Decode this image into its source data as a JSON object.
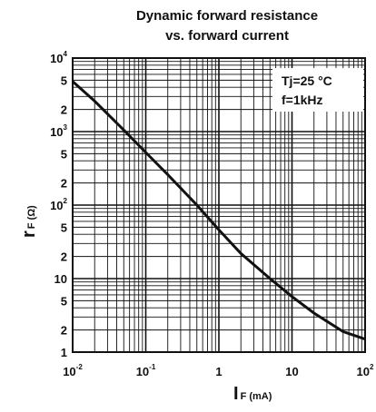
{
  "chart_data": {
    "type": "line",
    "title_line1": "Dynamic forward resistance",
    "title_line2": "vs. forward current",
    "xlabel_symbol": "I",
    "xlabel_sub": "F (mA)",
    "ylabel_symbol": "r",
    "ylabel_sub": "F (Ω)",
    "xscale": "log",
    "yscale": "log",
    "xlim": [
      0.01,
      100
    ],
    "ylim": [
      1,
      10000
    ],
    "grid": true,
    "x_ticks": [
      {
        "v": 0.01,
        "base": "10",
        "exp": "-2"
      },
      {
        "v": 0.1,
        "base": "10",
        "exp": "-1"
      },
      {
        "v": 1,
        "base": "1",
        "exp": ""
      },
      {
        "v": 10,
        "base": "10",
        "exp": ""
      },
      {
        "v": 100,
        "base": "10",
        "exp": "2"
      }
    ],
    "y_ticks": [
      {
        "v": 10000,
        "base": "10",
        "exp": "4"
      },
      {
        "v": 5000,
        "base": "5",
        "exp": ""
      },
      {
        "v": 2000,
        "base": "2",
        "exp": ""
      },
      {
        "v": 1000,
        "base": "10",
        "exp": "3"
      },
      {
        "v": 500,
        "base": "5",
        "exp": ""
      },
      {
        "v": 200,
        "base": "2",
        "exp": ""
      },
      {
        "v": 100,
        "base": "10",
        "exp": "2"
      },
      {
        "v": 50,
        "base": "5",
        "exp": ""
      },
      {
        "v": 20,
        "base": "2",
        "exp": ""
      },
      {
        "v": 10,
        "base": "10",
        "exp": ""
      },
      {
        "v": 5,
        "base": "5",
        "exp": ""
      },
      {
        "v": 2,
        "base": "2",
        "exp": ""
      },
      {
        "v": 1,
        "base": "1",
        "exp": ""
      }
    ],
    "annotations": [
      "Tj=25 °C",
      "f=1kHz"
    ],
    "series": [
      {
        "x": [
          0.01,
          0.02,
          0.05,
          0.1,
          0.2,
          0.5,
          1,
          2,
          5,
          10,
          20,
          50,
          100
        ],
        "y": [
          4800,
          2600,
          1050,
          520,
          260,
          100,
          46,
          22,
          10,
          5.7,
          3.4,
          1.9,
          1.5
        ]
      }
    ]
  }
}
